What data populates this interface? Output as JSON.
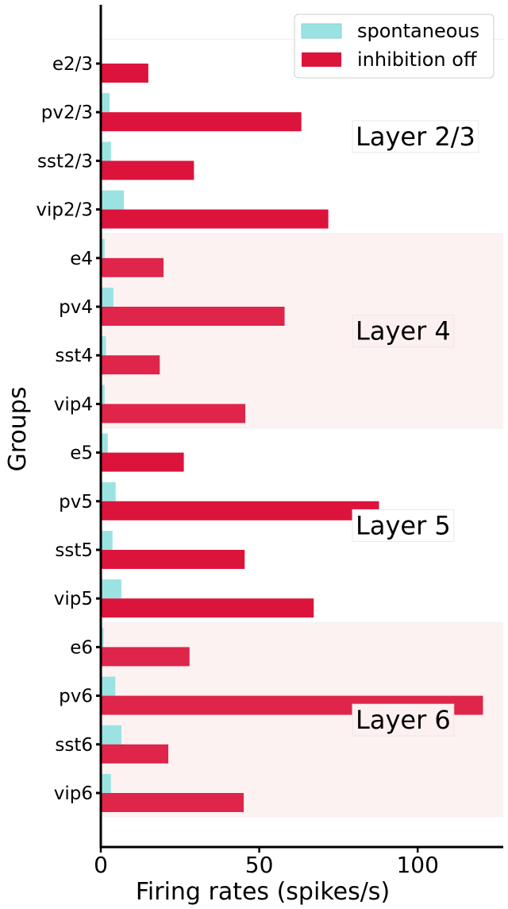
{
  "chart_data": {
    "type": "bar",
    "orientation": "horizontal",
    "xlabel": "Firing rates (spikes/s)",
    "ylabel": "Groups",
    "xlim": [
      0,
      127
    ],
    "xticks": [
      0,
      50,
      100
    ],
    "categories": [
      "e2/3",
      "pv2/3",
      "sst2/3",
      "vip2/3",
      "e4",
      "pv4",
      "sst4",
      "vip4",
      "e5",
      "pv5",
      "sst5",
      "vip5",
      "e6",
      "pv6",
      "sst6",
      "vip6"
    ],
    "series": [
      {
        "name": "spontaneous",
        "color": "#9be3e3",
        "values": [
          0.3,
          2.8,
          3.2,
          7.3,
          1.2,
          4.0,
          1.6,
          1.2,
          2.2,
          4.7,
          3.7,
          6.5,
          0.9,
          4.6,
          6.5,
          3.2
        ]
      },
      {
        "name": "inhibition off",
        "color": "#dc143c",
        "values": [
          15.0,
          63.3,
          29.4,
          71.8,
          19.8,
          58.0,
          18.6,
          45.6,
          26.2,
          87.8,
          45.4,
          67.2,
          28.0,
          120.6,
          21.3,
          45.1
        ]
      }
    ],
    "groups": [
      {
        "label": "Layer 2/3",
        "shaded": false
      },
      {
        "label": "Layer 4",
        "shaded": true
      },
      {
        "label": "Layer 5",
        "shaded": false
      },
      {
        "label": "Layer 6",
        "shaded": true
      }
    ],
    "legend_position": "top-right",
    "grid": false
  }
}
